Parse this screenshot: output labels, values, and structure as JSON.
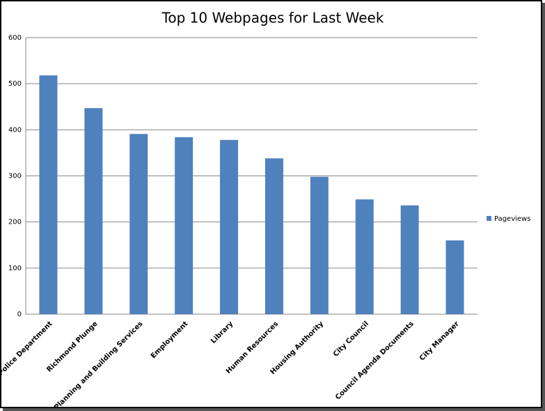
{
  "chart_data": {
    "type": "bar",
    "title": "Top 10 Webpages for Last Week",
    "categories": [
      "Police Department",
      "Richmond Plunge",
      "Planning and Building Services",
      "Employment",
      "Library",
      "Human Resources",
      "Housing Authority",
      "City Council",
      "Council Agenda Documents",
      "City Manager"
    ],
    "series": [
      {
        "name": "Pageviews",
        "color": "#4f81bd",
        "values": [
          518,
          447,
          391,
          384,
          378,
          338,
          298,
          249,
          236,
          160
        ]
      }
    ],
    "ylim": [
      0,
      600
    ],
    "yticks": [
      0,
      100,
      200,
      300,
      400,
      500,
      600
    ],
    "grid": true,
    "legend": "right"
  }
}
